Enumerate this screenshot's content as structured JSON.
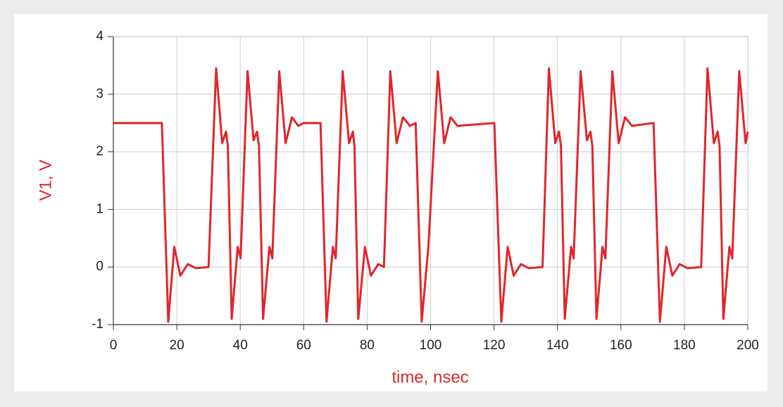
{
  "chart_data": {
    "type": "line",
    "xlabel": "time, nsec",
    "ylabel": "V1, V",
    "xlim": [
      0,
      200
    ],
    "ylim": [
      -1,
      4
    ],
    "xticks": [
      0,
      20,
      40,
      60,
      80,
      100,
      120,
      140,
      160,
      180,
      200
    ],
    "yticks": [
      -1,
      0,
      1,
      2,
      3,
      4
    ],
    "grid": true,
    "x": [
      0,
      15.3,
      17.3,
      19.2,
      21.1,
      23.5,
      26,
      30,
      32.4,
      34.3,
      35.5,
      36.1,
      37.3,
      39.2,
      40.1,
      42.3,
      44.2,
      45.3,
      45.9,
      47.2,
      49.2,
      50.1,
      52.3,
      54.3,
      56.3,
      58.3,
      60,
      65.3,
      67.2,
      69.2,
      70.1,
      72.3,
      74.3,
      75.5,
      76,
      77.2,
      79.3,
      81.2,
      83.5,
      85.3,
      87.3,
      89.3,
      91.3,
      93.5,
      95.3,
      97.2,
      99.3,
      102.3,
      104.3,
      106.3,
      108.5,
      120.1,
      122.3,
      124.3,
      126.2,
      128.5,
      131,
      135.3,
      137.3,
      139.3,
      140.5,
      141.1,
      142.3,
      144.3,
      145.1,
      147.3,
      149.3,
      150.4,
      151,
      152.3,
      154.2,
      155.1,
      157.3,
      159.3,
      161.3,
      163.5,
      170.3,
      172.3,
      174.3,
      176.2,
      178.5,
      181,
      185.3,
      187.3,
      189.3,
      190.5,
      191.1,
      192.3,
      194.2,
      195.1,
      197.3,
      199.3,
      200
    ],
    "series": [
      {
        "name": "V1",
        "color": "#e0262b",
        "values": [
          2.5,
          2.5,
          -0.95,
          0.35,
          -0.15,
          0.05,
          -0.02,
          0,
          3.45,
          2.15,
          2.35,
          2.1,
          -0.9,
          0.35,
          0.15,
          3.4,
          2.2,
          2.35,
          2.1,
          -0.9,
          0.35,
          0.15,
          3.4,
          2.15,
          2.6,
          2.45,
          2.5,
          2.5,
          -0.95,
          0.35,
          0.15,
          3.4,
          2.15,
          2.35,
          2.1,
          -0.9,
          0.35,
          -0.15,
          0.05,
          0,
          3.4,
          2.15,
          2.6,
          2.45,
          2.5,
          -0.95,
          0.35,
          3.4,
          2.15,
          2.6,
          2.45,
          2.5,
          -0.95,
          0.35,
          -0.15,
          0.05,
          -0.02,
          0,
          3.45,
          2.15,
          2.35,
          2.1,
          -0.9,
          0.35,
          0.15,
          3.4,
          2.2,
          2.35,
          2.1,
          -0.9,
          0.35,
          0.15,
          3.4,
          2.15,
          2.6,
          2.45,
          2.5,
          -0.95,
          0.35,
          -0.15,
          0.05,
          -0.02,
          0,
          3.45,
          2.15,
          2.35,
          2.1,
          -0.9,
          0.35,
          0.15,
          3.4,
          2.15,
          2.35
        ]
      }
    ]
  }
}
